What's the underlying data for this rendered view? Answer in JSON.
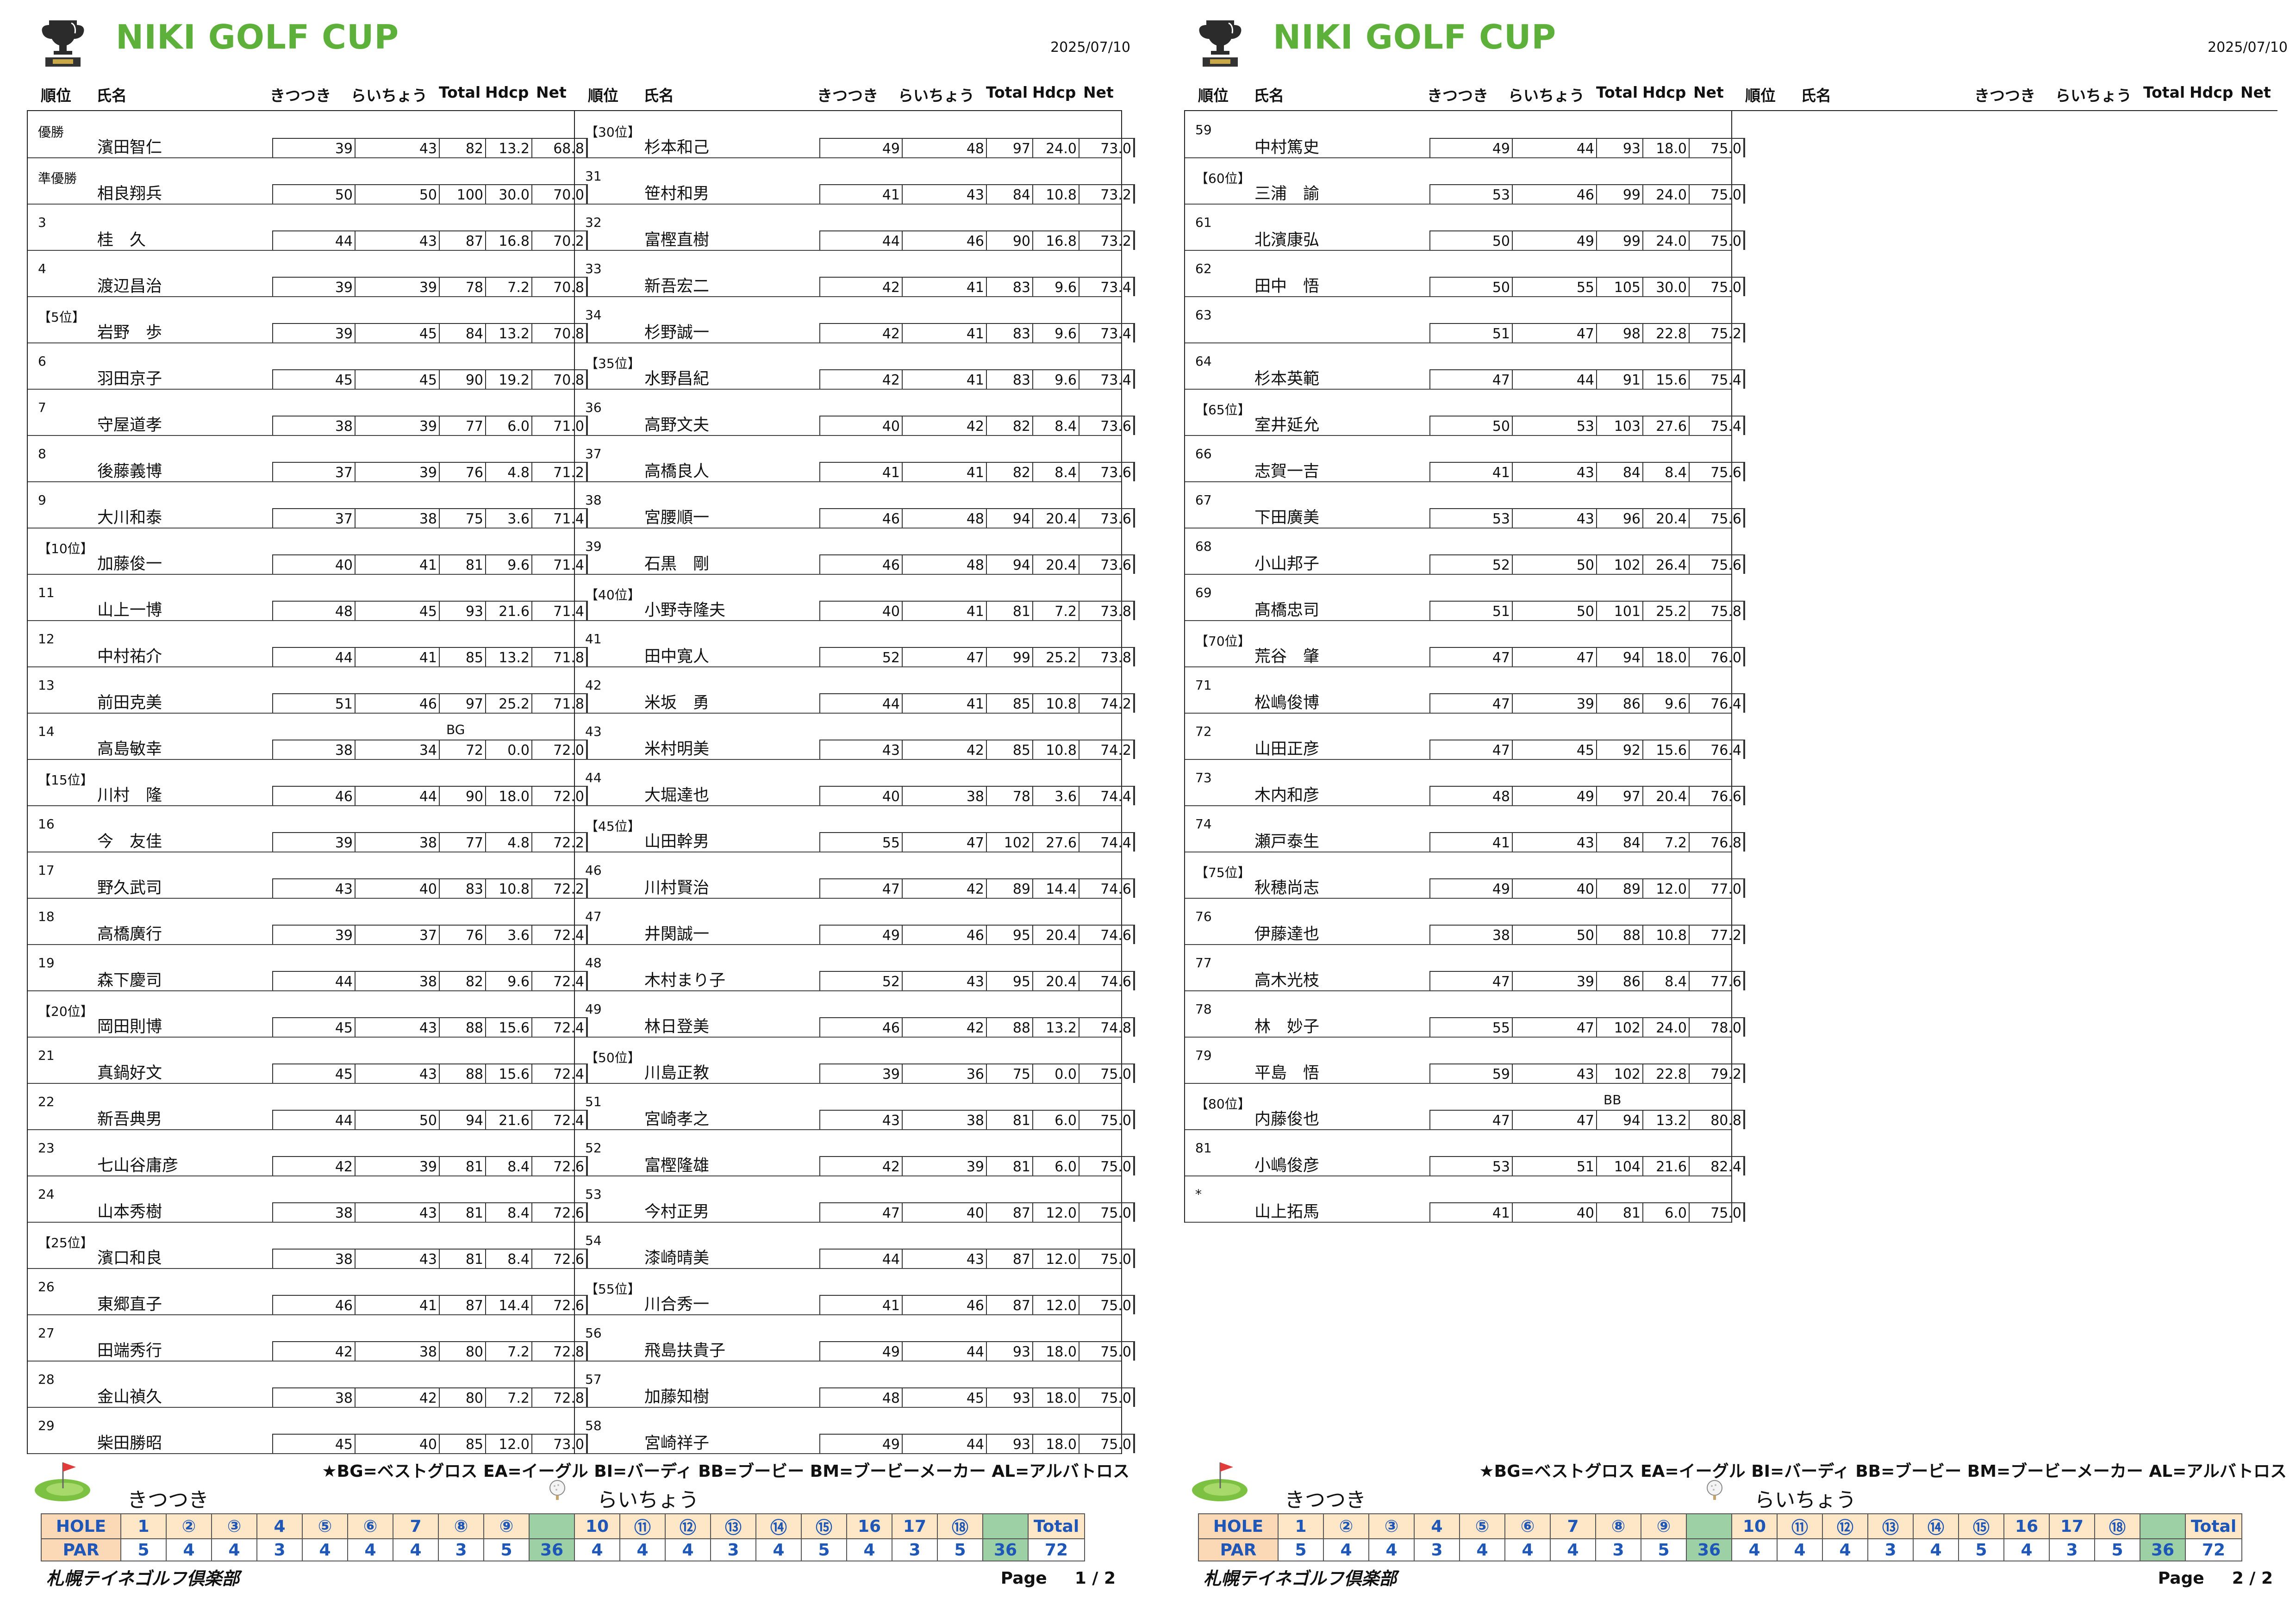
{
  "title": "NIKI GOLF CUP",
  "date": "2025/07/10",
  "headers": {
    "rank": "順位",
    "name": "氏名",
    "out": "きつつき",
    "in": "らいちょう",
    "total": "Total",
    "hdcp": "Hdcp",
    "net": "Net"
  },
  "legend": "★BG=ベストグロス EA=イーグル BI=バーディ BB=ブービー BM=ブービーメーカー AL=アルバトロス",
  "course_out": "きつつき",
  "course_in": "らいちょう",
  "hole_label": "HOLE",
  "par_label": "PAR",
  "holes": [
    "1",
    "②",
    "③",
    "4",
    "⑤",
    "⑥",
    "7",
    "⑧",
    "⑨",
    "",
    "10",
    "⑪",
    "⑫",
    "⑬",
    "⑭",
    "⑮",
    "16",
    "17",
    "⑱",
    "",
    "Total"
  ],
  "pars": [
    "5",
    "4",
    "4",
    "3",
    "4",
    "4",
    "4",
    "3",
    "5",
    "36",
    "4",
    "4",
    "4",
    "3",
    "4",
    "5",
    "4",
    "3",
    "5",
    "36",
    "72"
  ],
  "club": "札幌テイネゴルフ倶楽部",
  "page_label": "Page",
  "pages": [
    {
      "page_num": "1 / 2",
      "columns": [
        [
          [
            "優勝",
            "濱田智仁",
            "39",
            "43",
            "82",
            "13.2",
            "68.8",
            ""
          ],
          [
            "準優勝",
            "相良翔兵",
            "50",
            "50",
            "100",
            "30.0",
            "70.0",
            ""
          ],
          [
            "3",
            "桂　久",
            "44",
            "43",
            "87",
            "16.8",
            "70.2",
            ""
          ],
          [
            "4",
            "渡辺昌治",
            "39",
            "39",
            "78",
            "7.2",
            "70.8",
            ""
          ],
          [
            "【5位】",
            "岩野　歩",
            "39",
            "45",
            "84",
            "13.2",
            "70.8",
            ""
          ],
          [
            "6",
            "羽田京子",
            "45",
            "45",
            "90",
            "19.2",
            "70.8",
            ""
          ],
          [
            "7",
            "守屋道孝",
            "38",
            "39",
            "77",
            "6.0",
            "71.0",
            ""
          ],
          [
            "8",
            "後藤義博",
            "37",
            "39",
            "76",
            "4.8",
            "71.2",
            ""
          ],
          [
            "9",
            "大川和泰",
            "37",
            "38",
            "75",
            "3.6",
            "71.4",
            ""
          ],
          [
            "【10位】",
            "加藤俊一",
            "40",
            "41",
            "81",
            "9.6",
            "71.4",
            ""
          ],
          [
            "11",
            "山上一博",
            "48",
            "45",
            "93",
            "21.6",
            "71.4",
            ""
          ],
          [
            "12",
            "中村祐介",
            "44",
            "41",
            "85",
            "13.2",
            "71.8",
            ""
          ],
          [
            "13",
            "前田克美",
            "51",
            "46",
            "97",
            "25.2",
            "71.8",
            ""
          ],
          [
            "14",
            "高島敏幸",
            "38",
            "34",
            "72",
            "0.0",
            "72.0",
            "BG"
          ],
          [
            "【15位】",
            "川村　隆",
            "46",
            "44",
            "90",
            "18.0",
            "72.0",
            ""
          ],
          [
            "16",
            "今　友佳",
            "39",
            "38",
            "77",
            "4.8",
            "72.2",
            ""
          ],
          [
            "17",
            "野久武司",
            "43",
            "40",
            "83",
            "10.8",
            "72.2",
            ""
          ],
          [
            "18",
            "高橋廣行",
            "39",
            "37",
            "76",
            "3.6",
            "72.4",
            ""
          ],
          [
            "19",
            "森下慶司",
            "44",
            "38",
            "82",
            "9.6",
            "72.4",
            ""
          ],
          [
            "【20位】",
            "岡田則博",
            "45",
            "43",
            "88",
            "15.6",
            "72.4",
            ""
          ],
          [
            "21",
            "真鍋好文",
            "45",
            "43",
            "88",
            "15.6",
            "72.4",
            ""
          ],
          [
            "22",
            "新吾典男",
            "44",
            "50",
            "94",
            "21.6",
            "72.4",
            ""
          ],
          [
            "23",
            "七山谷庸彦",
            "42",
            "39",
            "81",
            "8.4",
            "72.6",
            ""
          ],
          [
            "24",
            "山本秀樹",
            "38",
            "43",
            "81",
            "8.4",
            "72.6",
            ""
          ],
          [
            "【25位】",
            "濱口和良",
            "38",
            "43",
            "81",
            "8.4",
            "72.6",
            ""
          ],
          [
            "26",
            "東郷直子",
            "46",
            "41",
            "87",
            "14.4",
            "72.6",
            ""
          ],
          [
            "27",
            "田端秀行",
            "42",
            "38",
            "80",
            "7.2",
            "72.8",
            ""
          ],
          [
            "28",
            "金山禎久",
            "38",
            "42",
            "80",
            "7.2",
            "72.8",
            ""
          ],
          [
            "29",
            "柴田勝昭",
            "45",
            "40",
            "85",
            "12.0",
            "73.0",
            ""
          ]
        ],
        [
          [
            "【30位】",
            "杉本和己",
            "49",
            "48",
            "97",
            "24.0",
            "73.0",
            ""
          ],
          [
            "31",
            "笹村和男",
            "41",
            "43",
            "84",
            "10.8",
            "73.2",
            ""
          ],
          [
            "32",
            "富樫直樹",
            "44",
            "46",
            "90",
            "16.8",
            "73.2",
            ""
          ],
          [
            "33",
            "新吾宏二",
            "42",
            "41",
            "83",
            "9.6",
            "73.4",
            ""
          ],
          [
            "34",
            "杉野誠一",
            "42",
            "41",
            "83",
            "9.6",
            "73.4",
            ""
          ],
          [
            "【35位】",
            "水野昌紀",
            "42",
            "41",
            "83",
            "9.6",
            "73.4",
            ""
          ],
          [
            "36",
            "高野文夫",
            "40",
            "42",
            "82",
            "8.4",
            "73.6",
            ""
          ],
          [
            "37",
            "高橋良人",
            "41",
            "41",
            "82",
            "8.4",
            "73.6",
            ""
          ],
          [
            "38",
            "宮腰順一",
            "46",
            "48",
            "94",
            "20.4",
            "73.6",
            ""
          ],
          [
            "39",
            "石黒　剛",
            "46",
            "48",
            "94",
            "20.4",
            "73.6",
            ""
          ],
          [
            "【40位】",
            "小野寺隆夫",
            "40",
            "41",
            "81",
            "7.2",
            "73.8",
            ""
          ],
          [
            "41",
            "田中寛人",
            "52",
            "47",
            "99",
            "25.2",
            "73.8",
            ""
          ],
          [
            "42",
            "米坂　勇",
            "44",
            "41",
            "85",
            "10.8",
            "74.2",
            ""
          ],
          [
            "43",
            "米村明美",
            "43",
            "42",
            "85",
            "10.8",
            "74.2",
            ""
          ],
          [
            "44",
            "大堀達也",
            "40",
            "38",
            "78",
            "3.6",
            "74.4",
            ""
          ],
          [
            "【45位】",
            "山田幹男",
            "55",
            "47",
            "102",
            "27.6",
            "74.4",
            ""
          ],
          [
            "46",
            "川村賢治",
            "47",
            "42",
            "89",
            "14.4",
            "74.6",
            ""
          ],
          [
            "47",
            "井関誠一",
            "49",
            "46",
            "95",
            "20.4",
            "74.6",
            ""
          ],
          [
            "48",
            "木村まり子",
            "52",
            "43",
            "95",
            "20.4",
            "74.6",
            ""
          ],
          [
            "49",
            "林日登美",
            "46",
            "42",
            "88",
            "13.2",
            "74.8",
            ""
          ],
          [
            "【50位】",
            "川島正教",
            "39",
            "36",
            "75",
            "0.0",
            "75.0",
            ""
          ],
          [
            "51",
            "宮崎孝之",
            "43",
            "38",
            "81",
            "6.0",
            "75.0",
            ""
          ],
          [
            "52",
            "富樫隆雄",
            "42",
            "39",
            "81",
            "6.0",
            "75.0",
            ""
          ],
          [
            "53",
            "今村正男",
            "47",
            "40",
            "87",
            "12.0",
            "75.0",
            ""
          ],
          [
            "54",
            "漆崎晴美",
            "44",
            "43",
            "87",
            "12.0",
            "75.0",
            ""
          ],
          [
            "【55位】",
            "川合秀一",
            "41",
            "46",
            "87",
            "12.0",
            "75.0",
            ""
          ],
          [
            "56",
            "飛島扶貴子",
            "49",
            "44",
            "93",
            "18.0",
            "75.0",
            ""
          ],
          [
            "57",
            "加藤知樹",
            "48",
            "45",
            "93",
            "18.0",
            "75.0",
            ""
          ],
          [
            "58",
            "宮崎祥子",
            "49",
            "44",
            "93",
            "18.0",
            "75.0",
            ""
          ]
        ]
      ]
    },
    {
      "page_num": "2 / 2",
      "columns": [
        [
          [
            "59",
            "中村篤史",
            "49",
            "44",
            "93",
            "18.0",
            "75.0",
            ""
          ],
          [
            "【60位】",
            "三浦　諭",
            "53",
            "46",
            "99",
            "24.0",
            "75.0",
            ""
          ],
          [
            "61",
            "北濱康弘",
            "50",
            "49",
            "99",
            "24.0",
            "75.0",
            ""
          ],
          [
            "62",
            "田中　悟",
            "50",
            "55",
            "105",
            "30.0",
            "75.0",
            ""
          ],
          [
            "63",
            "",
            "51",
            "47",
            "98",
            "22.8",
            "75.2",
            ""
          ],
          [
            "64",
            "杉本英範",
            "47",
            "44",
            "91",
            "15.6",
            "75.4",
            ""
          ],
          [
            "【65位】",
            "室井延允",
            "50",
            "53",
            "103",
            "27.6",
            "75.4",
            ""
          ],
          [
            "66",
            "志賀一吉",
            "41",
            "43",
            "84",
            "8.4",
            "75.6",
            ""
          ],
          [
            "67",
            "下田廣美",
            "53",
            "43",
            "96",
            "20.4",
            "75.6",
            ""
          ],
          [
            "68",
            "小山邦子",
            "52",
            "50",
            "102",
            "26.4",
            "75.6",
            ""
          ],
          [
            "69",
            "髙橋忠司",
            "51",
            "50",
            "101",
            "25.2",
            "75.8",
            ""
          ],
          [
            "【70位】",
            "荒谷　肇",
            "47",
            "47",
            "94",
            "18.0",
            "76.0",
            ""
          ],
          [
            "71",
            "松嶋俊博",
            "47",
            "39",
            "86",
            "9.6",
            "76.4",
            ""
          ],
          [
            "72",
            "山田正彦",
            "47",
            "45",
            "92",
            "15.6",
            "76.4",
            ""
          ],
          [
            "73",
            "木内和彦",
            "48",
            "49",
            "97",
            "20.4",
            "76.6",
            ""
          ],
          [
            "74",
            "瀬戸泰生",
            "41",
            "43",
            "84",
            "7.2",
            "76.8",
            ""
          ],
          [
            "【75位】",
            "秋穂尚志",
            "49",
            "40",
            "89",
            "12.0",
            "77.0",
            ""
          ],
          [
            "76",
            "伊藤達也",
            "38",
            "50",
            "88",
            "10.8",
            "77.2",
            ""
          ],
          [
            "77",
            "高木光枝",
            "47",
            "39",
            "86",
            "8.4",
            "77.6",
            ""
          ],
          [
            "78",
            "林　妙子",
            "55",
            "47",
            "102",
            "24.0",
            "78.0",
            ""
          ],
          [
            "79",
            "平島　悟",
            "59",
            "43",
            "102",
            "22.8",
            "79.2",
            ""
          ],
          [
            "【80位】",
            "内藤俊也",
            "47",
            "47",
            "94",
            "13.2",
            "80.8",
            "BB"
          ],
          [
            "81",
            "小嶋俊彦",
            "53",
            "51",
            "104",
            "21.6",
            "82.4",
            ""
          ],
          [
            "*",
            "山上拓馬",
            "41",
            "40",
            "81",
            "6.0",
            "75.0",
            ""
          ]
        ],
        []
      ]
    }
  ]
}
